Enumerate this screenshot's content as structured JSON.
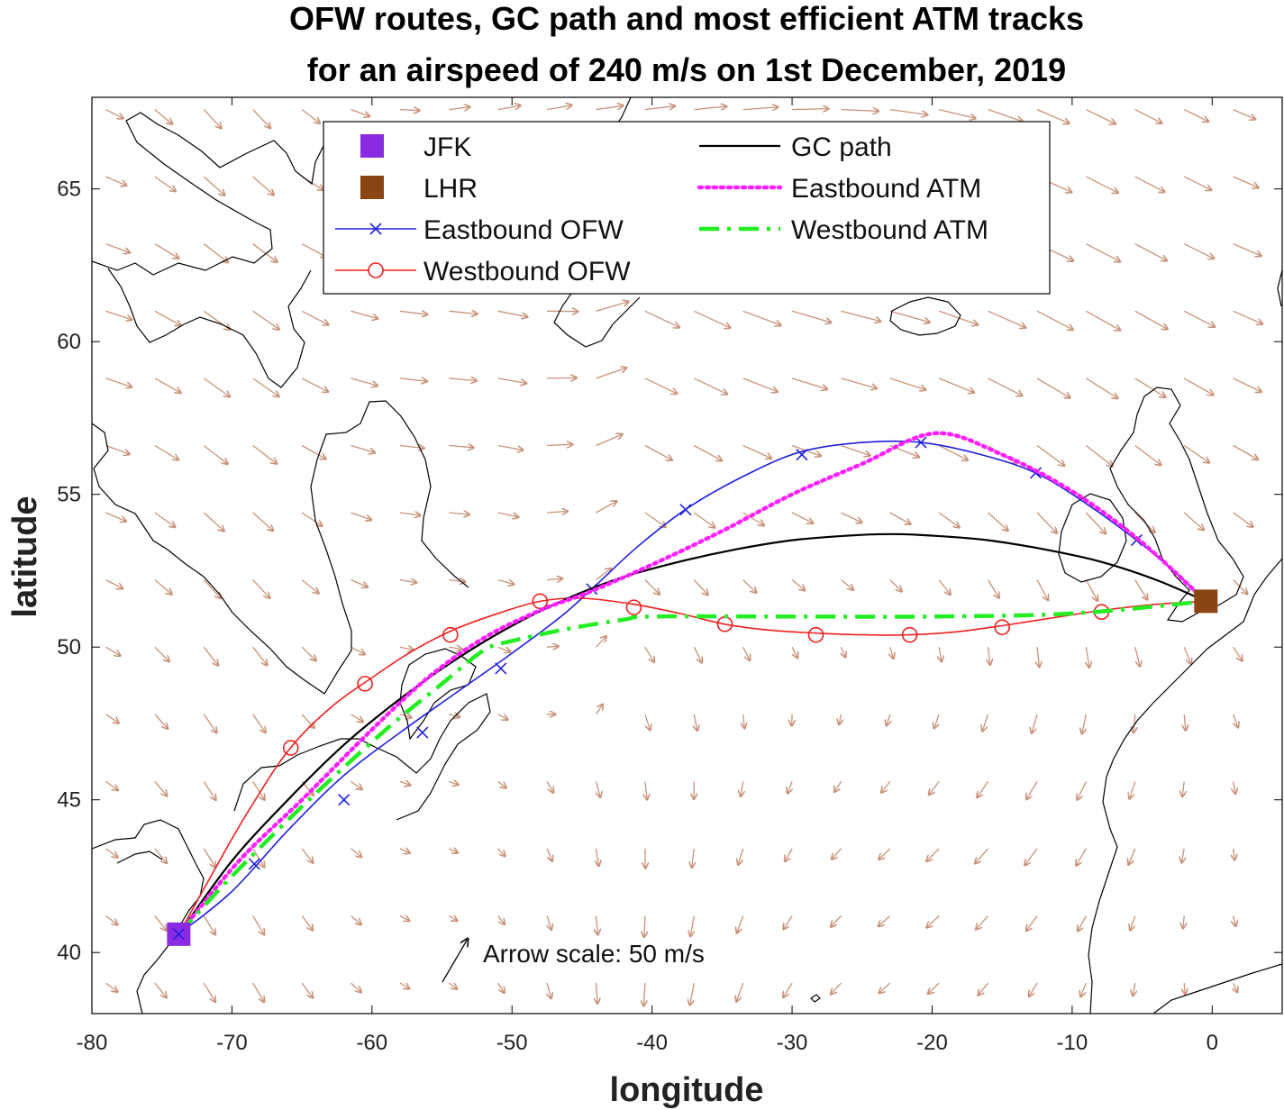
{
  "title_line1": "OFW routes, GC path and most efficient ATM tracks",
  "title_line2": "for an airspeed of 240 m/s on 1st December, 2019",
  "arrow_scale_label": "Arrow scale: 50 m/s",
  "colors": {
    "jfk": "#8a2be2",
    "lhr": "#8b4513",
    "eastbound_ofw": "#1f1fe0",
    "westbound_ofw": "#ee2020",
    "gc_path": "#000000",
    "eastbound_atm": "#ff20ff",
    "westbound_atm": "#22ee22",
    "wind_arrows": "#c8927a",
    "coastline": "#000000"
  },
  "chart_data": {
    "type": "map",
    "xlabel": "longitude",
    "ylabel": "latitude",
    "xlim": [
      -80,
      5
    ],
    "ylim": [
      38,
      68
    ],
    "xticks": [
      -80,
      -70,
      -60,
      -50,
      -40,
      -30,
      -20,
      -10,
      0
    ],
    "yticks": [
      40,
      45,
      50,
      55,
      60,
      65
    ],
    "grid": false,
    "legend_position": "top-center",
    "legend": [
      {
        "key": "jfk",
        "label": "JFK",
        "marker": "square"
      },
      {
        "key": "lhr",
        "label": "LHR",
        "marker": "square"
      },
      {
        "key": "eastbound_ofw",
        "label": "Eastbound OFW",
        "line": "solid",
        "marker": "x"
      },
      {
        "key": "westbound_ofw",
        "label": "Westbound OFW",
        "line": "solid",
        "marker": "o"
      },
      {
        "key": "gc_path",
        "label": "GC path",
        "line": "solid"
      },
      {
        "key": "eastbound_atm",
        "label": "Eastbound ATM",
        "line": "dotted"
      },
      {
        "key": "westbound_atm",
        "label": "Westbound ATM",
        "line": "dashdot"
      }
    ],
    "airports": [
      {
        "key": "jfk",
        "label": "JFK",
        "lon": -73.8,
        "lat": 40.6
      },
      {
        "key": "lhr",
        "label": "LHR",
        "lon": -0.45,
        "lat": 51.5
      }
    ],
    "series": [
      {
        "key": "eastbound_ofw",
        "name": "Eastbound OFW",
        "points": [
          [
            -73.8,
            40.6
          ],
          [
            -70,
            42
          ],
          [
            -66,
            44
          ],
          [
            -62,
            45.8
          ],
          [
            -58,
            47.2
          ],
          [
            -54,
            48.5
          ],
          [
            -50,
            49.8
          ],
          [
            -46.5,
            51
          ],
          [
            -44.3,
            51.9
          ],
          [
            -41,
            53.3
          ],
          [
            -37.3,
            54.6
          ],
          [
            -33,
            55.7
          ],
          [
            -29.3,
            56.4
          ],
          [
            -25,
            56.7
          ],
          [
            -20.8,
            56.7
          ],
          [
            -16.5,
            56.3
          ],
          [
            -12.6,
            55.7
          ],
          [
            -9,
            54.7
          ],
          [
            -5.4,
            53.5
          ],
          [
            -2.5,
            52.4
          ],
          [
            -0.45,
            51.5
          ]
        ],
        "markers": [
          [
            -73.8,
            40.6
          ],
          [
            -68.4,
            42.9
          ],
          [
            -62.0,
            45.0
          ],
          [
            -56.4,
            47.2
          ],
          [
            -50.8,
            49.3
          ],
          [
            -44.3,
            51.9
          ],
          [
            -37.6,
            54.5
          ],
          [
            -29.3,
            56.3
          ],
          [
            -20.8,
            56.7
          ],
          [
            -12.6,
            55.7
          ],
          [
            -5.4,
            53.5
          ]
        ]
      },
      {
        "key": "westbound_ofw",
        "name": "Westbound OFW",
        "points": [
          [
            -73.8,
            40.6
          ],
          [
            -71.5,
            42.5
          ],
          [
            -69,
            44.5
          ],
          [
            -66,
            46.6
          ],
          [
            -63,
            48.0
          ],
          [
            -60,
            49.0
          ],
          [
            -57,
            49.9
          ],
          [
            -54,
            50.6
          ],
          [
            -51,
            51.1
          ],
          [
            -48,
            51.5
          ],
          [
            -45,
            51.6
          ],
          [
            -41.3,
            51.4
          ],
          [
            -38,
            51.1
          ],
          [
            -34.8,
            50.75
          ],
          [
            -31.5,
            50.55
          ],
          [
            -28,
            50.45
          ],
          [
            -24.7,
            50.4
          ],
          [
            -21.7,
            50.4
          ],
          [
            -18.3,
            50.5
          ],
          [
            -15,
            50.7
          ],
          [
            -11.5,
            50.95
          ],
          [
            -7.9,
            51.2
          ],
          [
            -4,
            51.4
          ],
          [
            -0.45,
            51.5
          ]
        ],
        "markers": [
          [
            -65.8,
            46.7
          ],
          [
            -60.5,
            48.8
          ],
          [
            -54.4,
            50.4
          ],
          [
            -48.0,
            51.5
          ],
          [
            -41.3,
            51.3
          ],
          [
            -34.8,
            50.75
          ],
          [
            -28.3,
            50.4
          ],
          [
            -21.6,
            50.4
          ],
          [
            -15.0,
            50.65
          ],
          [
            -7.9,
            51.15
          ]
        ]
      },
      {
        "key": "gc_path",
        "name": "GC path",
        "points": [
          [
            -73.8,
            40.6
          ],
          [
            -70,
            43
          ],
          [
            -66,
            45
          ],
          [
            -62,
            46.8
          ],
          [
            -58,
            48.3
          ],
          [
            -54,
            49.6
          ],
          [
            -50,
            50.7
          ],
          [
            -46,
            51.6
          ],
          [
            -42,
            52.3
          ],
          [
            -38,
            52.8
          ],
          [
            -34,
            53.2
          ],
          [
            -30,
            53.5
          ],
          [
            -26,
            53.65
          ],
          [
            -23,
            53.7
          ],
          [
            -20,
            53.65
          ],
          [
            -16,
            53.5
          ],
          [
            -12,
            53.2
          ],
          [
            -8,
            52.8
          ],
          [
            -4,
            52.2
          ],
          [
            -0.45,
            51.5
          ]
        ]
      },
      {
        "key": "eastbound_atm",
        "name": "Eastbound ATM",
        "points": [
          [
            -73.8,
            40.6
          ],
          [
            -69.5,
            43.0
          ],
          [
            -65,
            45.0
          ],
          [
            -60,
            47.3
          ],
          [
            -56,
            49.0
          ],
          [
            -52,
            50.3
          ],
          [
            -48,
            51.2
          ],
          [
            -44.5,
            51.8
          ],
          [
            -40,
            52.7
          ],
          [
            -35,
            53.8
          ],
          [
            -30,
            55.0
          ],
          [
            -25,
            56.0
          ],
          [
            -19.8,
            57.0
          ],
          [
            -15,
            56.3
          ],
          [
            -10,
            55.1
          ],
          [
            -5.2,
            53.5
          ],
          [
            -0.45,
            51.5
          ]
        ]
      },
      {
        "key": "westbound_atm",
        "name": "Westbound ATM",
        "points": [
          [
            -73.8,
            40.6
          ],
          [
            -70,
            42.5
          ],
          [
            -64.5,
            45
          ],
          [
            -59,
            47.3
          ],
          [
            -55,
            48.8
          ],
          [
            -52,
            49.9
          ],
          [
            -50,
            50.2
          ],
          [
            -46,
            50.6
          ],
          [
            -42,
            50.9
          ],
          [
            -40,
            51.0
          ],
          [
            -30,
            51.0
          ],
          [
            -20,
            51.0
          ],
          [
            -10,
            51.1
          ],
          [
            -0.45,
            51.5
          ]
        ]
      }
    ],
    "wind_field": {
      "lon_start": -79,
      "lon_step": 3.5,
      "lat_start": 39,
      "lat_step": 2.2,
      "vectors_m_per_s": "derived from a clockwise anticyclone centered near 25W 54N plus a westerly jet",
      "scale_reference_m_per_s": 50
    }
  }
}
